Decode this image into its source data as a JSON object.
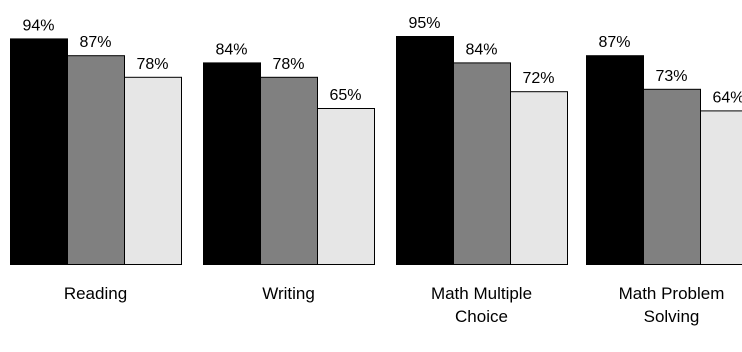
{
  "chart_data": {
    "type": "bar",
    "categories": [
      {
        "lines": [
          "Reading"
        ]
      },
      {
        "lines": [
          "Writing"
        ]
      },
      {
        "lines": [
          "Math Multiple",
          "Choice"
        ]
      },
      {
        "lines": [
          "Math Problem",
          "Solving"
        ]
      }
    ],
    "series": [
      {
        "values": [
          94,
          84,
          95,
          87
        ],
        "color": "#000000"
      },
      {
        "values": [
          87,
          78,
          84,
          73
        ],
        "color": "#808080"
      },
      {
        "values": [
          78,
          65,
          72,
          64
        ],
        "color": "#e6e6e6"
      }
    ],
    "value_suffix": "%",
    "ylim": [
      0,
      100
    ],
    "legend": "none",
    "grid": false
  }
}
